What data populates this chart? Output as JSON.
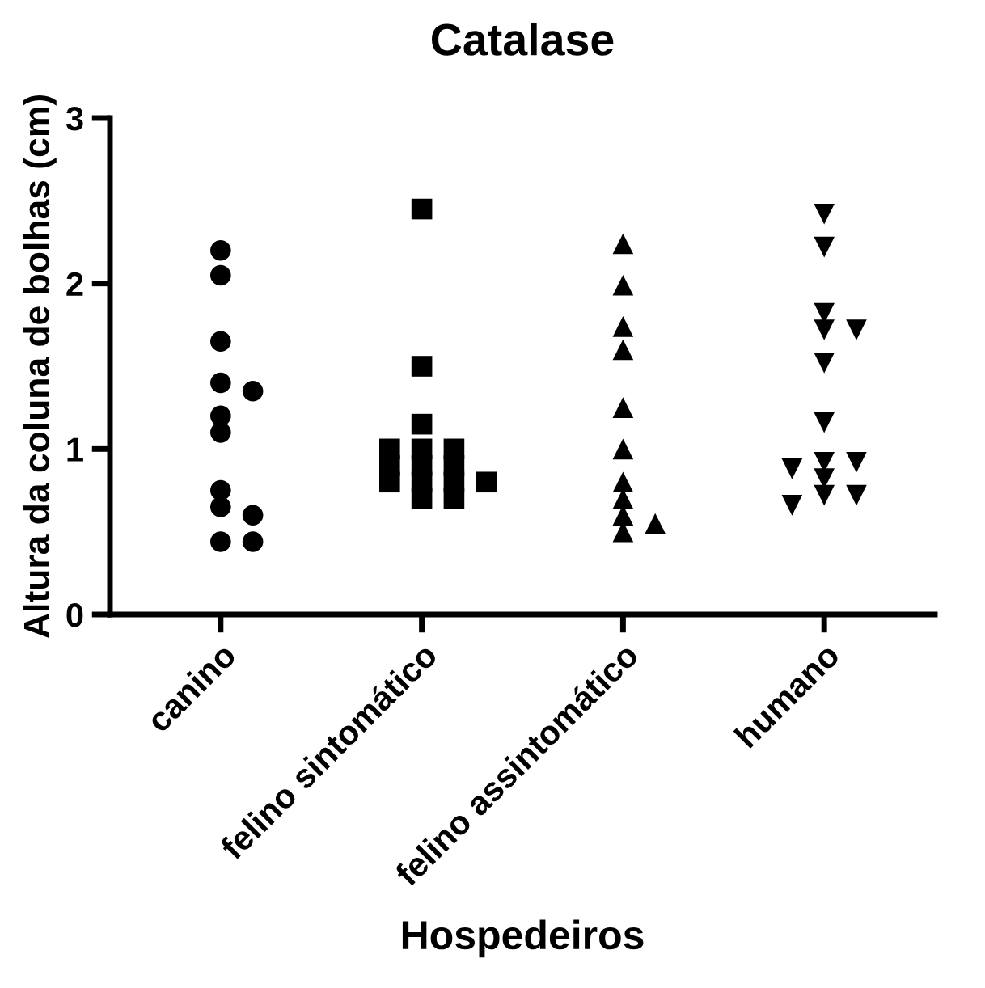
{
  "chart_data": {
    "type": "scatter",
    "title": "Catalase",
    "xlabel": "Hospedeiros",
    "ylabel": "Altura da coluna de bolhas (cm)",
    "categories": [
      "canino",
      "felino sintomático",
      "felino assintomático",
      "humano"
    ],
    "ylim": [
      0,
      3
    ],
    "yticks": [
      0,
      1,
      2,
      3
    ],
    "grid": false,
    "legend": false,
    "series": [
      {
        "color": "#000000",
        "marker": "circle",
        "x": [
          "canino",
          "canino",
          "canino",
          "canino",
          "canino",
          "canino",
          "canino",
          "canino",
          "canino",
          "canino",
          "canino",
          "canino"
        ],
        "values": [
          2.2,
          2.05,
          1.65,
          1.4,
          1.35,
          1.2,
          1.1,
          0.75,
          0.65,
          0.6,
          0.44,
          0.44
        ]
      },
      {
        "color": "#000000",
        "marker": "square",
        "x": [
          "felino sintomático",
          "felino sintomático",
          "felino sintomático",
          "felino sintomático",
          "felino sintomático",
          "felino sintomático",
          "felino sintomático",
          "felino sintomático",
          "felino sintomático",
          "felino sintomático",
          "felino sintomático",
          "felino sintomático",
          "felino sintomático",
          "felino sintomático",
          "felino sintomático"
        ],
        "values": [
          2.45,
          1.5,
          1.15,
          1.0,
          1.0,
          1.0,
          0.9,
          0.9,
          0.9,
          0.8,
          0.8,
          0.8,
          0.8,
          0.7,
          0.7
        ]
      },
      {
        "color": "#000000",
        "marker": "triangle",
        "x": [
          "felino assintomático",
          "felino assintomático",
          "felino assintomático",
          "felino assintomático",
          "felino assintomático",
          "felino assintomático",
          "felino assintomático",
          "felino assintomático",
          "felino assintomático",
          "felino assintomático",
          "felino assintomático"
        ],
        "values": [
          2.24,
          1.99,
          1.74,
          1.6,
          1.25,
          1.0,
          0.8,
          0.7,
          0.6,
          0.55,
          0.5
        ]
      },
      {
        "color": "#000000",
        "marker": "triangle_down",
        "x": [
          "humano",
          "humano",
          "humano",
          "humano",
          "humano",
          "humano",
          "humano",
          "humano",
          "humano",
          "humano",
          "humano",
          "humano",
          "humano",
          "humano"
        ],
        "values": [
          2.42,
          2.22,
          1.82,
          1.72,
          1.72,
          1.52,
          1.16,
          0.92,
          0.92,
          0.88,
          0.82,
          0.72,
          0.72,
          0.66
        ]
      }
    ]
  }
}
